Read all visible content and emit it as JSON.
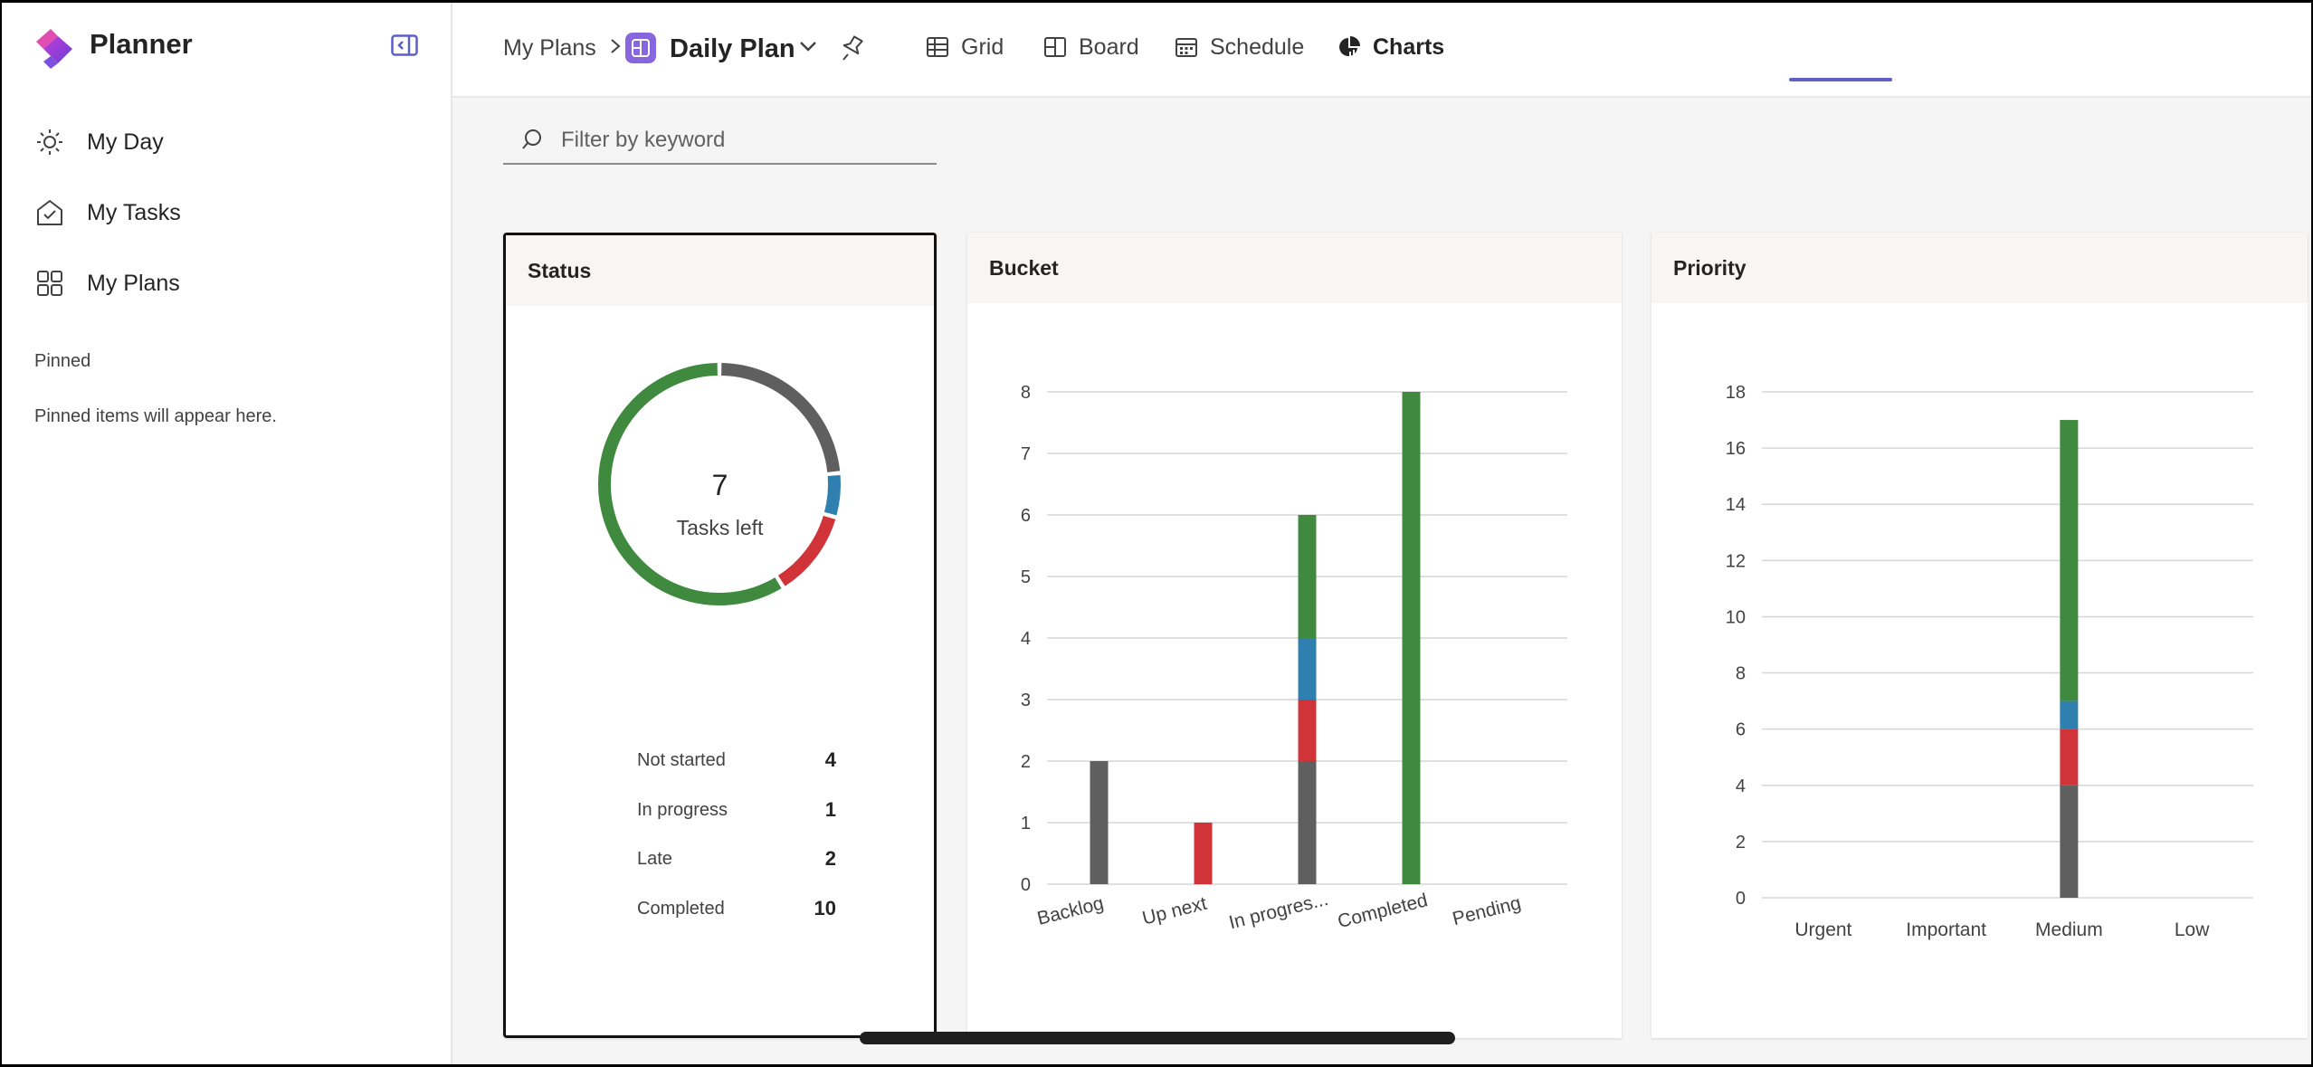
{
  "app": {
    "title": "Planner"
  },
  "sidebar": {
    "items": [
      {
        "label": "My Day",
        "icon": "sun-icon"
      },
      {
        "label": "My Tasks",
        "icon": "task-check-icon"
      },
      {
        "label": "My Plans",
        "icon": "grid-icon"
      }
    ],
    "pinned_heading": "Pinned",
    "pinned_empty": "Pinned items will appear here."
  },
  "header": {
    "breadcrumb": "My Plans",
    "plan_name": "Daily Plan",
    "tabs": [
      {
        "label": "Grid",
        "icon": "grid-table-icon"
      },
      {
        "label": "Board",
        "icon": "board-icon"
      },
      {
        "label": "Schedule",
        "icon": "calendar-icon"
      },
      {
        "label": "Charts",
        "icon": "pie-chart-icon",
        "active": true
      }
    ]
  },
  "filter": {
    "placeholder": "Filter by keyword"
  },
  "colors": {
    "not_started": "#5f5f5f",
    "in_progress": "#2f7fb0",
    "late": "#d13438",
    "completed": "#3f8a3f",
    "accent": "#5b5fc7"
  },
  "status_card": {
    "title": "Status",
    "center_value": "7",
    "center_label": "Tasks left",
    "legend": [
      {
        "label": "Not started",
        "value": "4"
      },
      {
        "label": "In progress",
        "value": "1"
      },
      {
        "label": "Late",
        "value": "2"
      },
      {
        "label": "Completed",
        "value": "10"
      }
    ]
  },
  "bucket_card": {
    "title": "Bucket"
  },
  "priority_card": {
    "title": "Priority"
  },
  "chart_data": [
    {
      "type": "pie",
      "title": "Status",
      "categories": [
        "Not started",
        "In progress",
        "Late",
        "Completed"
      ],
      "values": [
        4,
        1,
        2,
        10
      ]
    },
    {
      "type": "bar",
      "stacked": true,
      "title": "Bucket",
      "categories": [
        "Backlog",
        "Up next",
        "In progres...",
        "Completed",
        "Pending"
      ],
      "series": [
        {
          "values": [
            2,
            0,
            2,
            0,
            0
          ]
        },
        {
          "values": [
            0,
            1,
            1,
            0,
            0
          ]
        },
        {
          "values": [
            0,
            0,
            1,
            0,
            0
          ]
        },
        {
          "values": [
            0,
            0,
            2,
            8,
            0
          ]
        }
      ],
      "ylim": [
        0,
        8
      ],
      "yticks": [
        0,
        1,
        2,
        3,
        4,
        5,
        6,
        7,
        8
      ],
      "grid": true
    },
    {
      "type": "bar",
      "stacked": true,
      "title": "Priority",
      "categories": [
        "Urgent",
        "Important",
        "Medium",
        "Low"
      ],
      "series": [
        {
          "values": [
            0,
            0,
            4,
            0
          ]
        },
        {
          "values": [
            0,
            0,
            2,
            0
          ]
        },
        {
          "values": [
            0,
            0,
            1,
            0
          ]
        },
        {
          "values": [
            0,
            0,
            10,
            0
          ]
        }
      ],
      "ylim": [
        0,
        18
      ],
      "yticks": [
        0,
        2,
        4,
        6,
        8,
        10,
        12,
        14,
        16,
        18
      ],
      "grid": true
    }
  ]
}
